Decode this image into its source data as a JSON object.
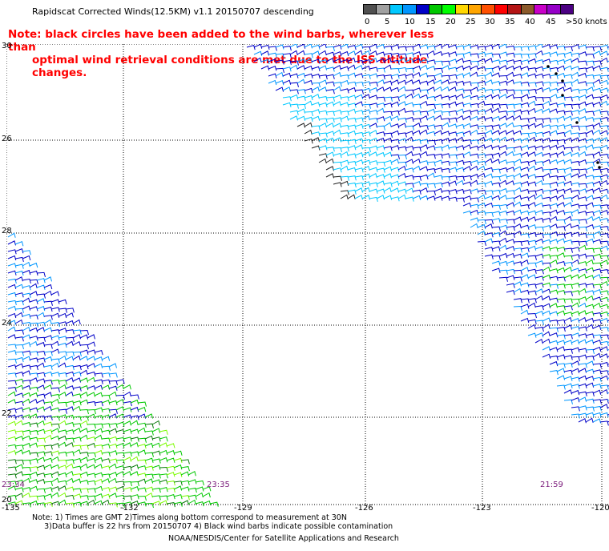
{
  "title": "Rapidscat Corrected Winds(12.5KM) v1.1 20150707 descending",
  "note_line1": "Note: black circles have been added to the wind barbs, wherever less than",
  "note_line2": "optimal wind retrieval conditions are met due to the ISS altitude changes.",
  "legend": {
    "labels": [
      "0",
      "5",
      "10",
      "15",
      "20",
      "25",
      "30",
      "35",
      "40",
      "45",
      ">50 knots"
    ],
    "colors": [
      "#505050",
      "#a0a0a0",
      "#00c8ff",
      "#0096ff",
      "#0000c8",
      "#00c800",
      "#00ff00",
      "#ffd700",
      "#ffa500",
      "#ff5000",
      "#ff0000",
      "#b41414",
      "#8b5a2b",
      "#c800c8",
      "#9600c8",
      "#4b0082"
    ]
  },
  "lat_labels": [
    "30",
    "26",
    "28",
    "24",
    "22",
    "20"
  ],
  "lon_labels": [
    "-135",
    "-132",
    "-129",
    "-126",
    "-123",
    "-120"
  ],
  "times": [
    "23:34",
    "23:35",
    "21:59"
  ],
  "footer_lines": [
    "Note: 1) Times are GMT 2)Times along bottom correspond to measurement at 30N",
    "     3)Data buffer is 22 hrs from 20150707 4) Black wind barbs indicate possible contamination"
  ],
  "credit": "NOAA/NESDIS/Center for Satellite Applications and Research"
}
